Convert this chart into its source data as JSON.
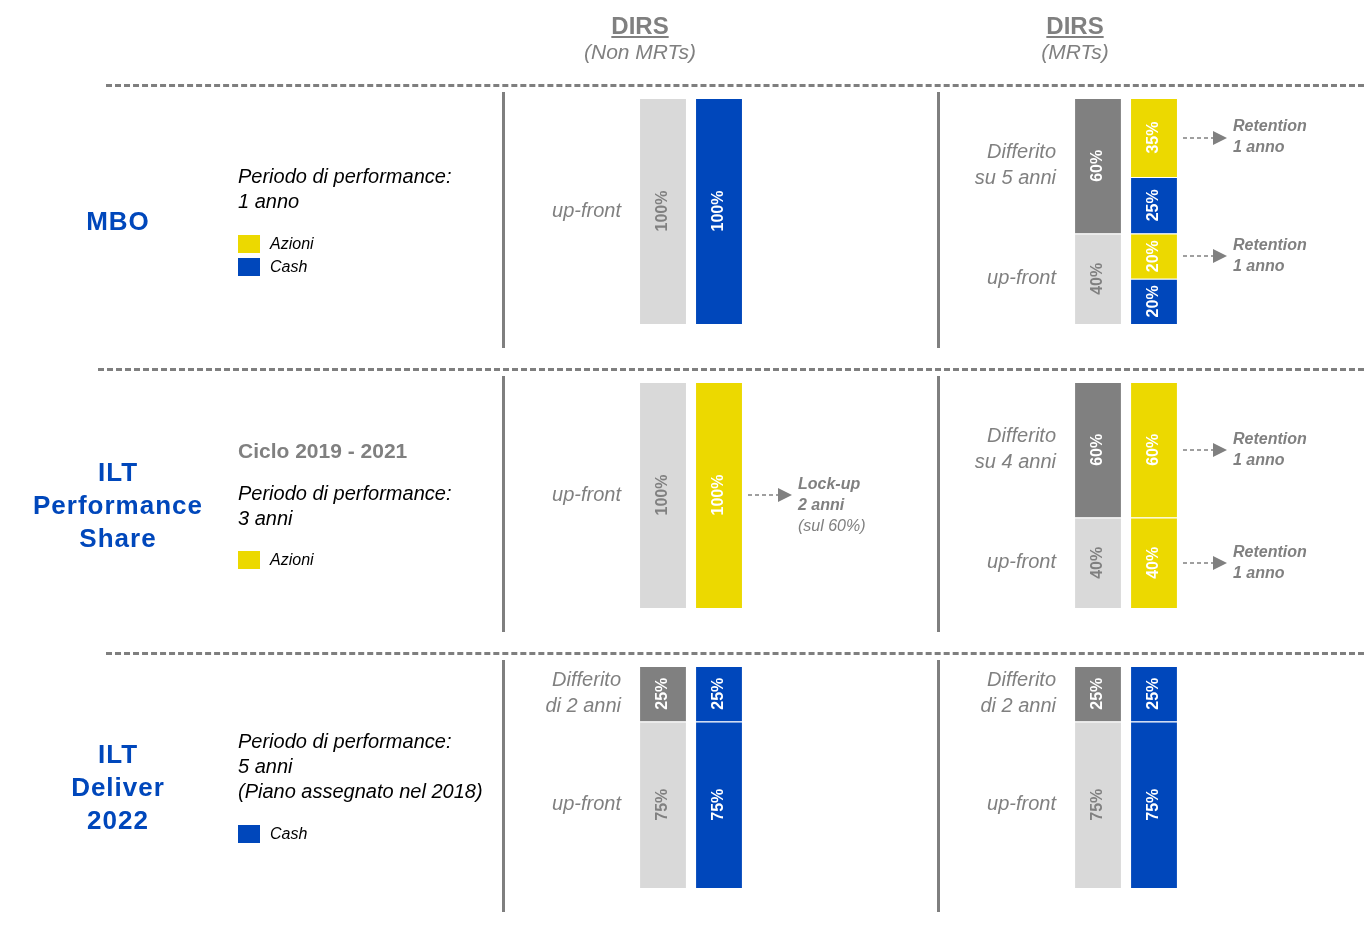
{
  "chart_data": [
    {
      "type": "other",
      "title": "MBO",
      "annotations": [
        "Periodo di performance:\n1 anno"
      ],
      "series": [
        {
          "name": "Azioni",
          "color": "#ecd900"
        },
        {
          "name": "Cash",
          "color": "#0047bb"
        }
      ]
    },
    {
      "type": "bar",
      "title": "DIRS",
      "subtitle": "(Non MRTs)",
      "stacked": true,
      "categories": [
        null,
        null
      ],
      "ylim": [
        0,
        100
      ],
      "tick_labels": false,
      "annotations": [
        "up-front"
      ],
      "series": [
        {
          "values": [
            100,
            100
          ],
          "colors": [
            "#d9d9d9",
            "#0047bb"
          ],
          "value_labels": [
            "100%",
            "100%"
          ]
        }
      ]
    },
    {
      "type": "bar",
      "title": "DIRS",
      "subtitle": "(MRTs)",
      "stacked": true,
      "categories": [
        null,
        null
      ],
      "tick_labels": false,
      "annotations": [
        "up-front",
        "Differito\nsu 5 anni",
        "Retention\n1 anno",
        "Retention\n1 anno"
      ],
      "series": [
        {
          "values": [
            40,
            20
          ],
          "colors": [
            "#d9d9d9",
            "#0047bb"
          ],
          "value_labels": [
            "40%",
            "20%"
          ]
        },
        {
          "values": [
            60,
            20
          ],
          "colors": [
            "#808080",
            "#ecd900"
          ],
          "value_labels": [
            "60%",
            "20%"
          ]
        },
        {
          "values": [
            null,
            25
          ],
          "colors": [
            null,
            "#0047bb"
          ],
          "value_labels": [
            null,
            "25%"
          ]
        },
        {
          "values": [
            null,
            35
          ],
          "colors": [
            null,
            "#ecd900"
          ],
          "value_labels": [
            null,
            "35%"
          ]
        }
      ]
    },
    {
      "type": "other",
      "title": "ILT\nPerformance\nShare",
      "subtitle": "Ciclo 2019 - 2021",
      "annotations": [
        "Periodo di performance:\n3 anni"
      ],
      "series": [
        {
          "name": "Azioni",
          "color": "#ecd900"
        }
      ]
    },
    {
      "type": "bar",
      "stacked": true,
      "categories": [
        null,
        null
      ],
      "ylim": [
        0,
        100
      ],
      "tick_labels": false,
      "annotations": [
        "up-front",
        "Lock-up\n2 anni\n(sul 60%)"
      ],
      "series": [
        {
          "values": [
            100,
            100
          ],
          "colors": [
            "#d9d9d9",
            "#ecd900"
          ],
          "value_labels": [
            "100%",
            "100%"
          ]
        }
      ]
    },
    {
      "type": "bar",
      "stacked": true,
      "categories": [
        null,
        null
      ],
      "ylim": [
        0,
        100
      ],
      "tick_labels": false,
      "annotations": [
        "up-front",
        "Differito\nsu 4 anni",
        "Retention\n1 anno",
        "Retention\n1 anno"
      ],
      "series": [
        {
          "values": [
            40,
            40
          ],
          "colors": [
            "#d9d9d9",
            "#ecd900"
          ],
          "value_labels": [
            "40%",
            "40%"
          ]
        },
        {
          "values": [
            60,
            60
          ],
          "colors": [
            "#808080",
            "#ecd900"
          ],
          "value_labels": [
            "60%",
            "60%"
          ]
        }
      ]
    },
    {
      "type": "other",
      "title": "ILT\nDeliver\n2022",
      "annotations": [
        "Periodo di performance:\n5 anni\n(Piano assegnato nel 2018)"
      ],
      "series": [
        {
          "name": "Cash",
          "color": "#0047bb"
        }
      ]
    },
    {
      "type": "bar",
      "stacked": true,
      "categories": [
        null,
        null
      ],
      "ylim": [
        0,
        100
      ],
      "tick_labels": false,
      "annotations": [
        "up-front",
        "Differito\ndi 2 anni"
      ],
      "series": [
        {
          "values": [
            75,
            75
          ],
          "colors": [
            "#d9d9d9",
            "#0047bb"
          ],
          "value_labels": [
            "75%",
            "75%"
          ]
        },
        {
          "values": [
            25,
            25
          ],
          "colors": [
            "#808080",
            "#0047bb"
          ],
          "value_labels": [
            "25%",
            "25%"
          ]
        }
      ]
    },
    {
      "type": "bar",
      "stacked": true,
      "categories": [
        null,
        null
      ],
      "ylim": [
        0,
        100
      ],
      "tick_labels": false,
      "annotations": [
        "up-front",
        "Differito\ndi 2 anni"
      ],
      "series": [
        {
          "values": [
            75,
            75
          ],
          "colors": [
            "#d9d9d9",
            "#0047bb"
          ],
          "value_labels": [
            "75%",
            "75%"
          ]
        },
        {
          "values": [
            25,
            25
          ],
          "colors": [
            "#808080",
            "#0047bb"
          ],
          "value_labels": [
            "25%",
            "25%"
          ]
        }
      ]
    }
  ]
}
